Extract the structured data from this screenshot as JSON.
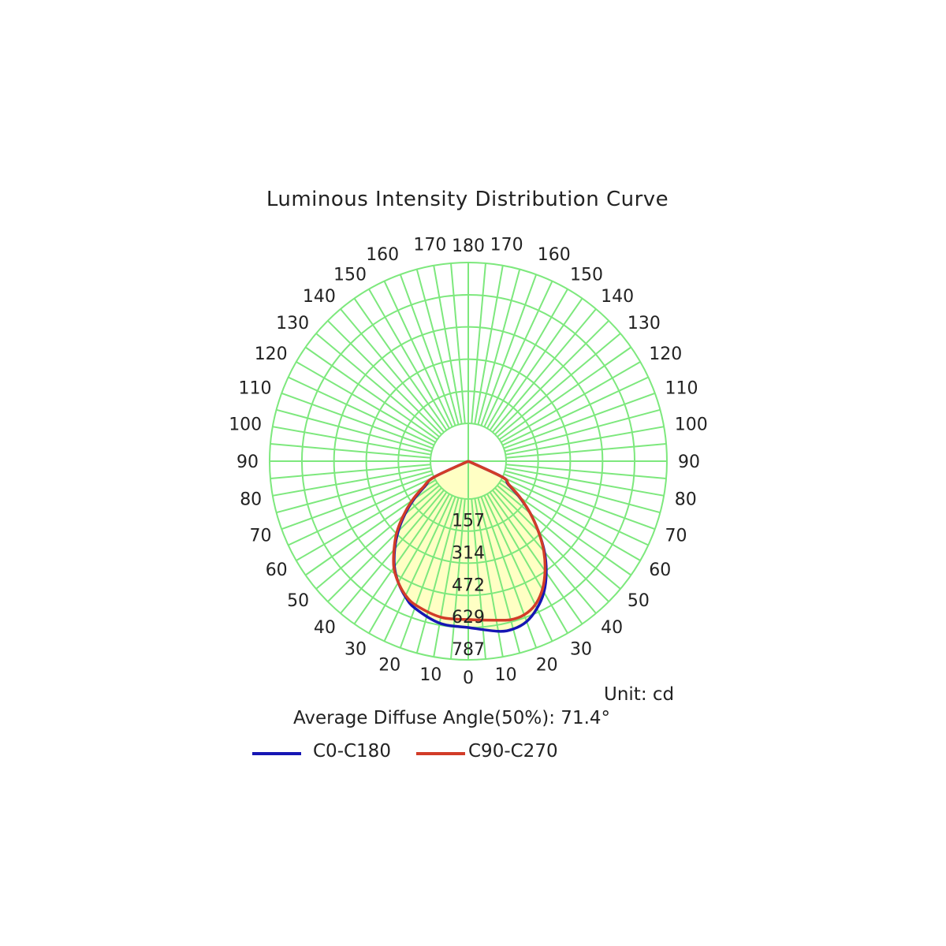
{
  "chart_data": {
    "type": "polar",
    "title": "Luminous Intensity Distribution Curve",
    "unit_label": "Unit: cd",
    "summary": "Average Diffuse Angle(50%): 71.4°",
    "radial_ticks": [
      157,
      314,
      472,
      629,
      787
    ],
    "rmax": 787,
    "angle_labels": [
      0,
      10,
      20,
      30,
      40,
      50,
      60,
      70,
      80,
      90,
      100,
      110,
      120,
      130,
      140,
      150,
      160,
      170,
      180
    ],
    "grid_color": "#7de87d",
    "fill_color": "#ffffc4",
    "series": [
      {
        "name": "C0-C180",
        "color": "#1616b4",
        "left": [
          {
            "a": 0,
            "v": 629
          },
          {
            "a": 10,
            "v": 620
          },
          {
            "a": 20,
            "v": 580
          },
          {
            "a": 25,
            "v": 545
          },
          {
            "a": 30,
            "v": 500
          },
          {
            "a": 35,
            "v": 445
          },
          {
            "a": 40,
            "v": 375
          },
          {
            "a": 45,
            "v": 300
          },
          {
            "a": 50,
            "v": 220
          },
          {
            "a": 55,
            "v": 140
          },
          {
            "a": 60,
            "v": 60
          },
          {
            "a": 65,
            "v": 0
          }
        ],
        "right": [
          {
            "a": 0,
            "v": 629
          },
          {
            "a": 10,
            "v": 660
          },
          {
            "a": 15,
            "v": 665
          },
          {
            "a": 20,
            "v": 650
          },
          {
            "a": 25,
            "v": 610
          },
          {
            "a": 30,
            "v": 555
          },
          {
            "a": 35,
            "v": 480
          },
          {
            "a": 40,
            "v": 395
          },
          {
            "a": 45,
            "v": 300
          },
          {
            "a": 50,
            "v": 210
          },
          {
            "a": 55,
            "v": 120
          },
          {
            "a": 60,
            "v": 40
          },
          {
            "a": 65,
            "v": 0
          }
        ]
      },
      {
        "name": "C90-C270",
        "color": "#d23c28",
        "left": [
          {
            "a": 0,
            "v": 590
          },
          {
            "a": 10,
            "v": 590
          },
          {
            "a": 20,
            "v": 565
          },
          {
            "a": 25,
            "v": 540
          },
          {
            "a": 30,
            "v": 500
          },
          {
            "a": 35,
            "v": 450
          },
          {
            "a": 40,
            "v": 380
          },
          {
            "a": 45,
            "v": 310
          },
          {
            "a": 50,
            "v": 230
          },
          {
            "a": 55,
            "v": 150
          },
          {
            "a": 60,
            "v": 70
          },
          {
            "a": 65,
            "v": 0
          }
        ],
        "right": [
          {
            "a": 0,
            "v": 590
          },
          {
            "a": 10,
            "v": 605
          },
          {
            "a": 15,
            "v": 618
          },
          {
            "a": 20,
            "v": 615
          },
          {
            "a": 25,
            "v": 590
          },
          {
            "a": 30,
            "v": 540
          },
          {
            "a": 35,
            "v": 470
          },
          {
            "a": 40,
            "v": 390
          },
          {
            "a": 45,
            "v": 300
          },
          {
            "a": 50,
            "v": 210
          },
          {
            "a": 55,
            "v": 125
          },
          {
            "a": 60,
            "v": 45
          },
          {
            "a": 65,
            "v": 0
          }
        ]
      }
    ]
  }
}
